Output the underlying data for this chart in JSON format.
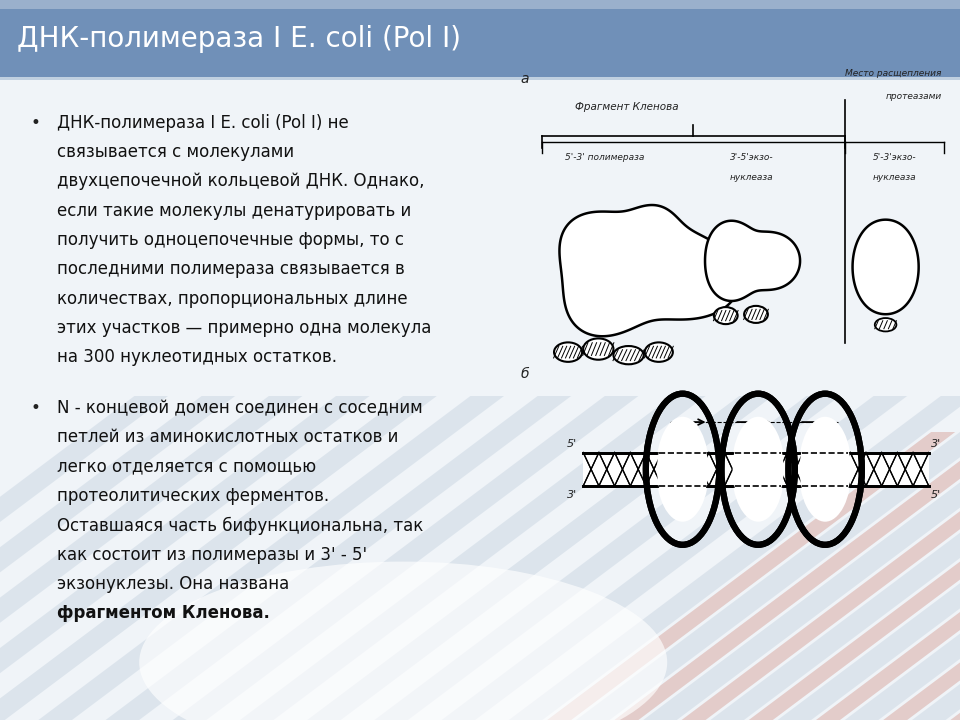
{
  "title": "ДНК-полимераза I E. coli (Pol I)",
  "title_bg_top": "#7b9cbf",
  "title_bg_mid": "#6888aa",
  "title_color": "#ffffff",
  "bullet1_lines": [
    "ДНК-полимераза I E. coli (Pol I) не",
    "связывается с молекулами",
    "двухцепочечной кольцевой ДНК. Однако,",
    "если такие молекулы денатурировать и",
    "получить одноцепочечные формы, то с",
    "последними полимераза связывается в",
    "количествах, пропорциональных длине",
    "этих участков — примерно одна молекула",
    "на 300 нуклеотидных остатков."
  ],
  "bullet2_lines_normal": [
    "N - концевой домен соединен с соседним",
    "петлей из аминокислотных остатков и",
    "легко отделяется с помощью",
    "протеолитических ферментов.",
    "Оставшаяся часть бифункциональна, так",
    "как состоит из полимеразы и 3' - 5'",
    "экзонуклезы. Она названа "
  ],
  "bullet2_bold": "фрагментом",
  "bullet2_bold2": "Кленова.",
  "font_size": 12,
  "title_font_size": 20,
  "label_a": "а",
  "label_b": "б",
  "label_klenov": "Фрагмент Кленова",
  "label_polym": "5'-3' полимераза",
  "label_exo35": "3'-5'экзо-\nнуклеаза",
  "label_exo53": "5'-3'экзо-\nнуклеаза",
  "label_cleavage1": "Место расщепления",
  "label_cleavage2": "протеазами"
}
